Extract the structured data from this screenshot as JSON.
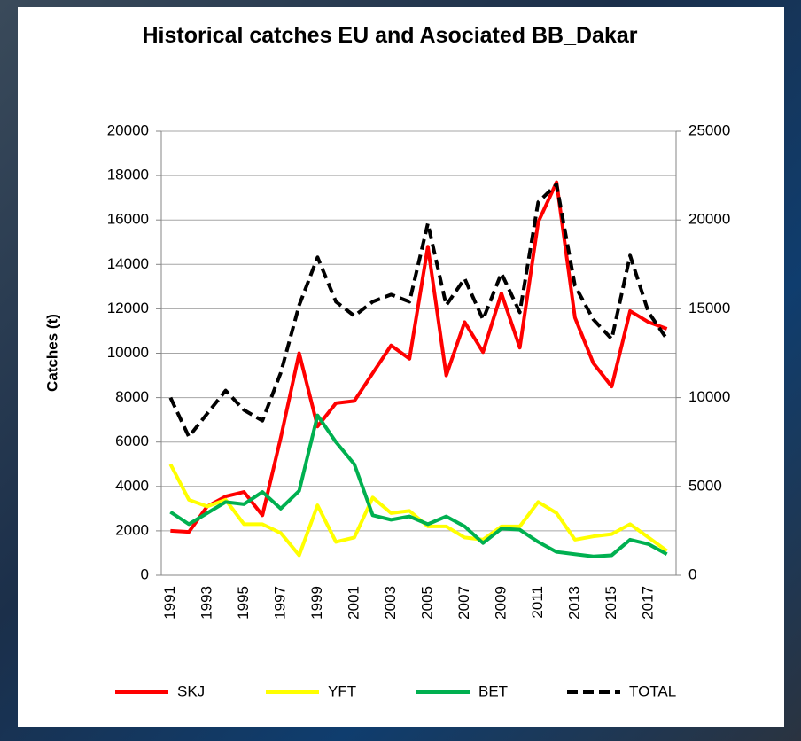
{
  "chart_data": {
    "type": "line",
    "title": "Historical catches EU and Asociated BB_Dakar",
    "y_label": "Catches (t)",
    "categories": [
      "1991",
      null,
      "1993",
      null,
      "1995",
      null,
      "1997",
      null,
      "1999",
      null,
      "2001",
      null,
      "2003",
      null,
      "2005",
      null,
      "2007",
      null,
      "2009",
      null,
      "2011",
      null,
      "2013",
      null,
      "2015",
      null,
      "2017",
      null
    ],
    "series": [
      {
        "name": "SKJ",
        "color": "#ff0000",
        "values": [
          2000,
          1950,
          3100,
          3550,
          3750,
          2700,
          6200,
          10000,
          6700,
          7750,
          7850,
          9100,
          10350,
          9750,
          14800,
          9000,
          11400,
          10050,
          12700,
          10250,
          15900,
          17700,
          11600,
          9550,
          8500,
          11900,
          11400,
          11100
        ]
      },
      {
        "name": "YFT",
        "color": "#ffff00",
        "values": [
          5000,
          3400,
          3100,
          3400,
          2300,
          2300,
          1900,
          900,
          3150,
          1500,
          1700,
          3500,
          2800,
          2900,
          2200,
          2200,
          1700,
          1600,
          2200,
          2200,
          3300,
          2800,
          1600,
          1750,
          1850,
          2300,
          1700,
          1100
        ]
      },
      {
        "name": "BET",
        "color": "#00b050",
        "values": [
          2850,
          2300,
          2800,
          3300,
          3200,
          3750,
          3000,
          3800,
          7200,
          6000,
          5000,
          2700,
          2500,
          2650,
          2300,
          2650,
          2200,
          1450,
          2100,
          2050,
          1500,
          1050,
          950,
          850,
          900,
          1600,
          1400,
          950
        ]
      },
      {
        "name": "TOTAL",
        "color": "#000000",
        "dash": "dashed",
        "axis": "y2",
        "values": [
          10000,
          7800,
          9100,
          10400,
          9300,
          8700,
          11400,
          15200,
          17900,
          15400,
          14600,
          15400,
          15800,
          15400,
          19800,
          15200,
          16700,
          14400,
          17000,
          14800,
          21000,
          22000,
          16300,
          14400,
          13300,
          18000,
          14800,
          13300
        ]
      }
    ],
    "ylim": [
      0,
      20000
    ],
    "yticks": [
      0,
      2000,
      4000,
      6000,
      8000,
      10000,
      12000,
      14000,
      16000,
      18000,
      20000
    ],
    "y2lim": [
      0,
      25000
    ],
    "y2ticks": [
      0,
      5000,
      10000,
      15000,
      20000,
      25000
    ],
    "grid": true,
    "legend": "bottom"
  }
}
